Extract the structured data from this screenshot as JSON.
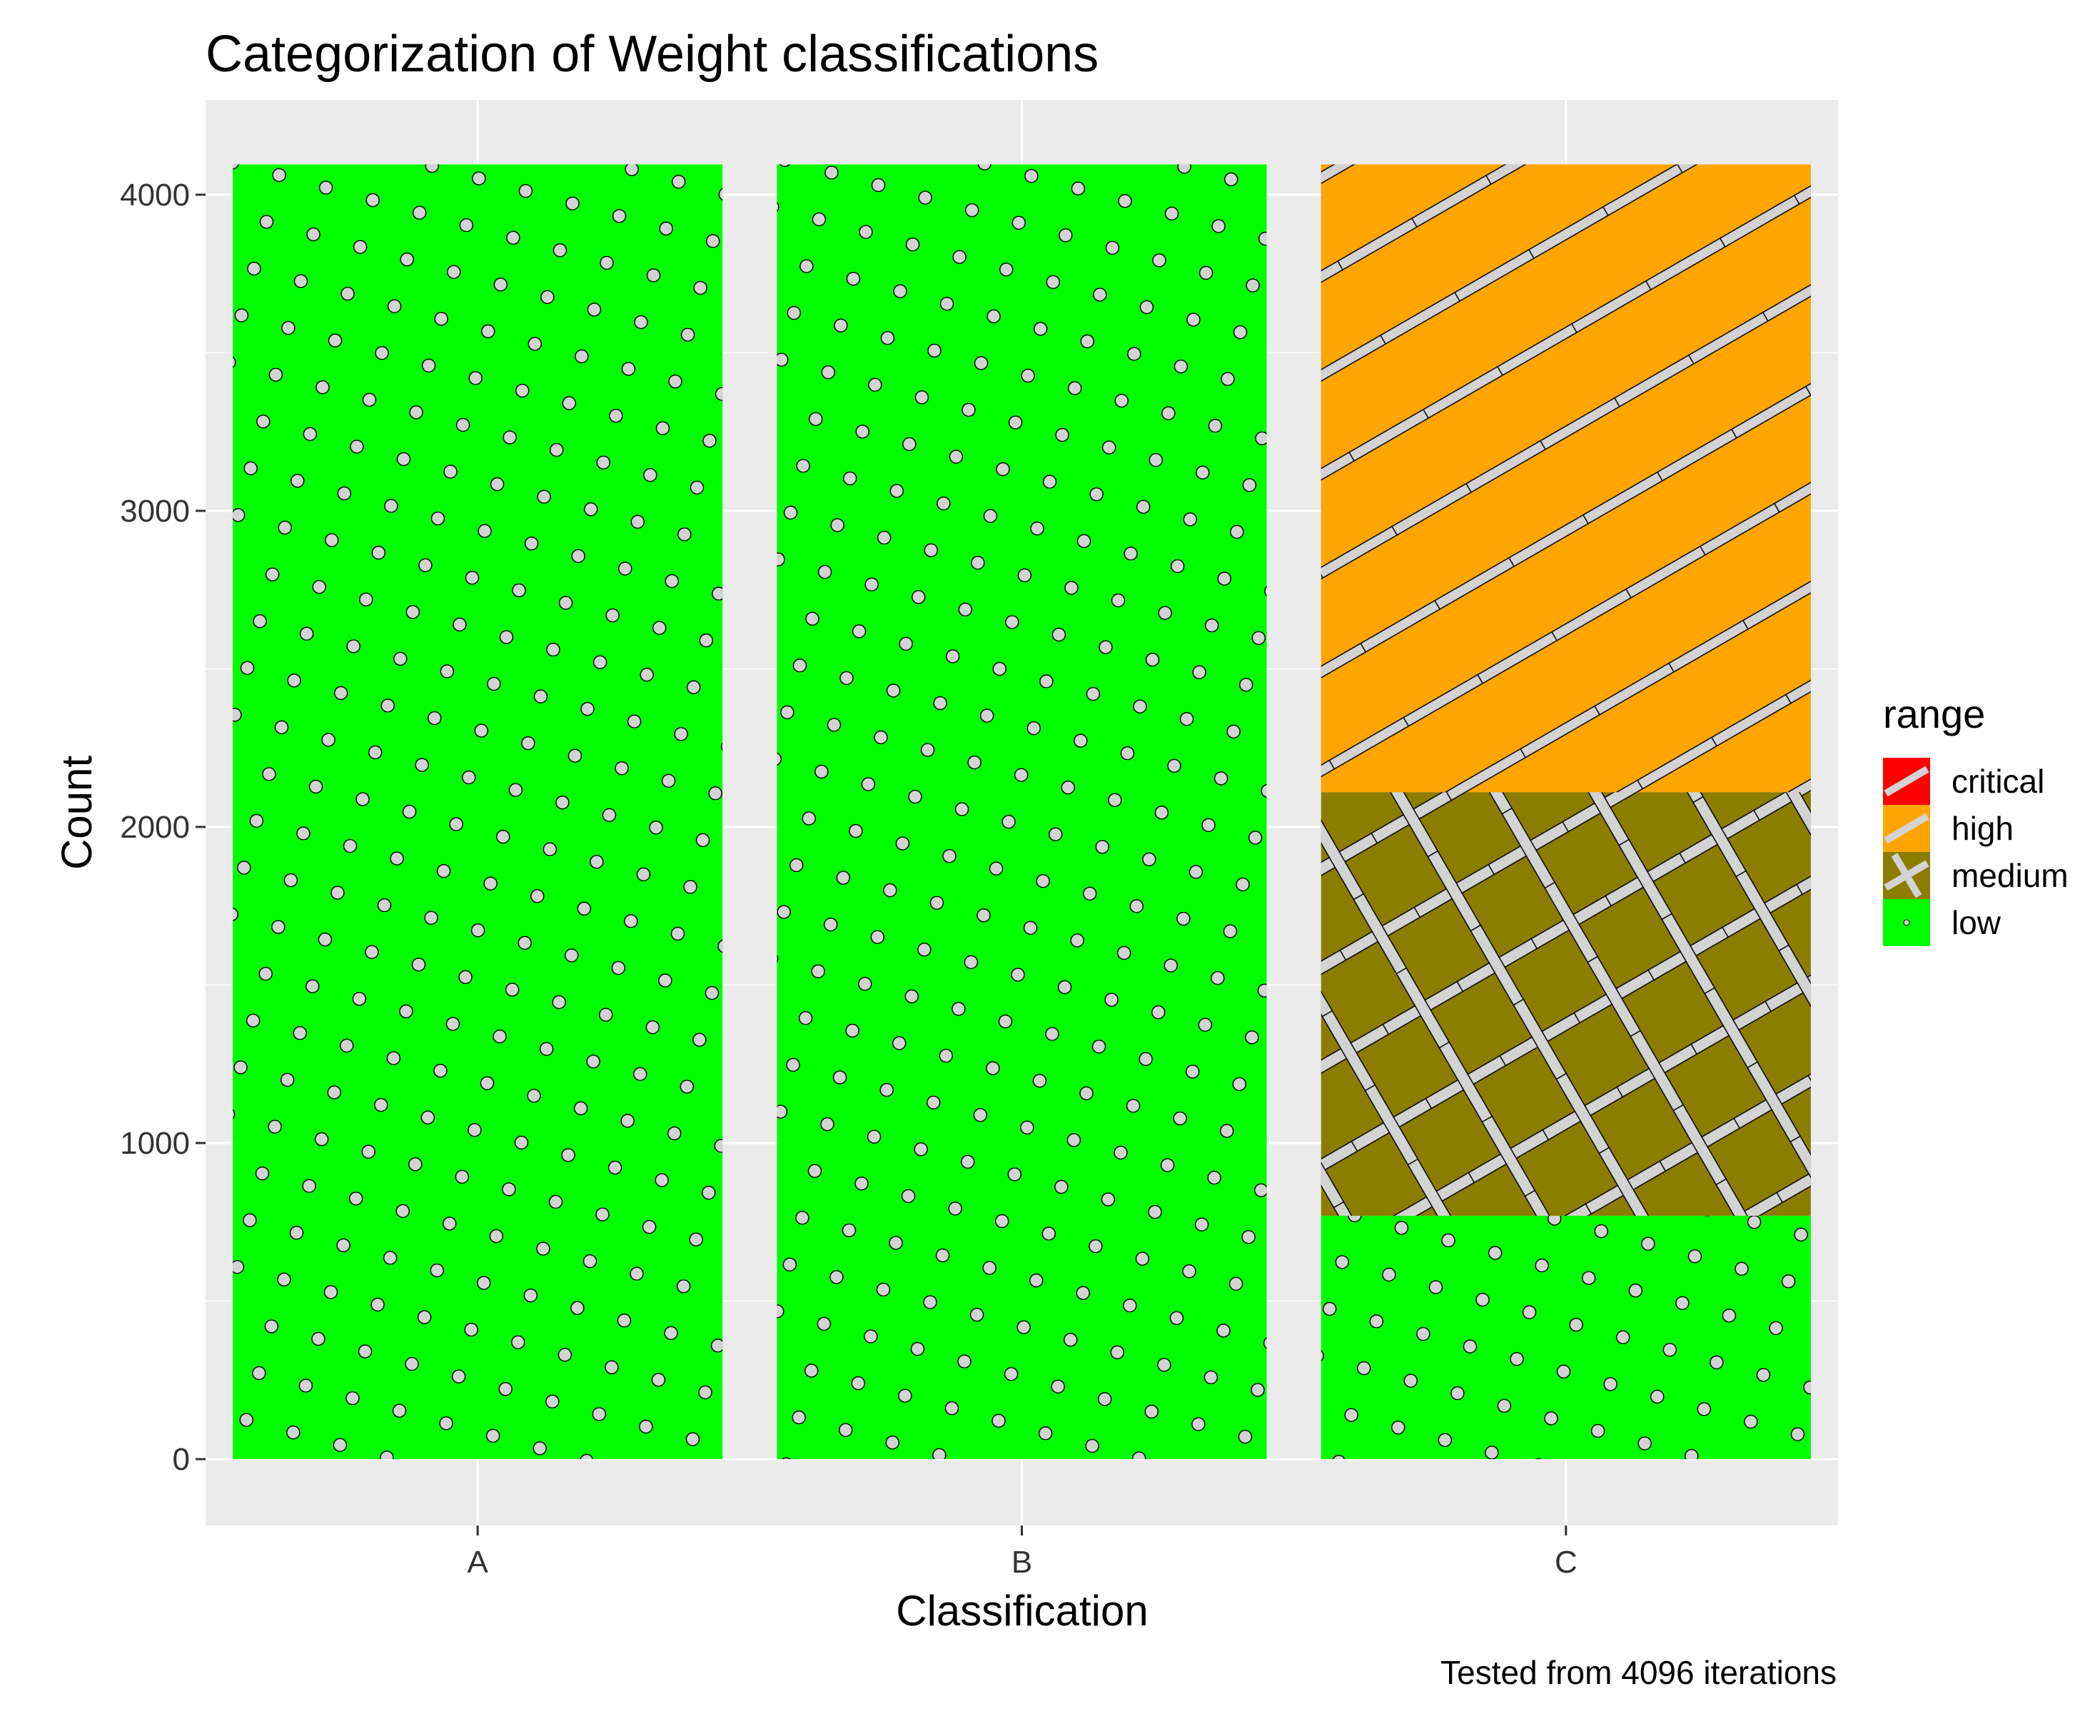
{
  "chart_data": {
    "type": "bar",
    "stacked": true,
    "title": "Categorization of Weight classifications",
    "xlabel": "Classification",
    "ylabel": "Count",
    "caption": "Tested from 4096 iterations",
    "categories": [
      "A",
      "B",
      "C"
    ],
    "ylim": [
      -210,
      4300
    ],
    "yticks": [
      0,
      1000,
      2000,
      3000,
      4000
    ],
    "ytick_labels": [
      "0",
      "1000",
      "2000",
      "3000",
      "4000"
    ],
    "series": [
      {
        "name": "low",
        "values": [
          4096,
          4096,
          770
        ],
        "color": "#00FF00",
        "pattern": "dots"
      },
      {
        "name": "medium",
        "values": [
          0,
          0,
          1340
        ],
        "color": "#8B7D00",
        "pattern": "crosshatch"
      },
      {
        "name": "high",
        "values": [
          0,
          0,
          1986
        ],
        "color": "#FFA500",
        "pattern": "stripes"
      },
      {
        "name": "critical",
        "values": [
          0,
          0,
          0
        ],
        "color": "#FF0000",
        "pattern": "stripes"
      }
    ],
    "legend": {
      "title": "range",
      "position": "right",
      "entries": [
        "critical",
        "high",
        "medium",
        "low"
      ]
    },
    "grid": true,
    "panel_background": "#EBEBEB"
  }
}
